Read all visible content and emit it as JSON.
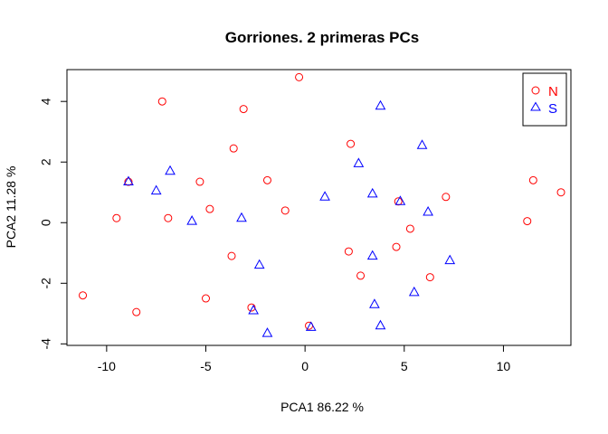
{
  "chart_data": {
    "type": "scatter",
    "title": "Gorriones. 2 primeras PCs",
    "xlabel": "PCA1  86.22 %",
    "ylabel": "PCA2  11.28 %",
    "xlim": [
      -12,
      13.4
    ],
    "ylim": [
      -4.05,
      5.05
    ],
    "xticks": [
      -10,
      -5,
      0,
      5,
      10
    ],
    "yticks": [
      -4,
      -2,
      0,
      2,
      4
    ],
    "grid": false,
    "legend": "top-right",
    "series": [
      {
        "name": "N",
        "marker": "circle",
        "color": "#ff0000",
        "points": [
          [
            -0.3,
            4.8
          ],
          [
            -7.2,
            4.0
          ],
          [
            -3.1,
            3.75
          ],
          [
            -3.6,
            2.45
          ],
          [
            2.3,
            2.6
          ],
          [
            -8.9,
            1.35
          ],
          [
            -5.3,
            1.35
          ],
          [
            -1.9,
            1.4
          ],
          [
            -9.5,
            0.15
          ],
          [
            -6.9,
            0.15
          ],
          [
            -4.8,
            0.45
          ],
          [
            -1.0,
            0.4
          ],
          [
            4.7,
            0.7
          ],
          [
            7.1,
            0.85
          ],
          [
            11.5,
            1.4
          ],
          [
            12.9,
            1.0
          ],
          [
            11.2,
            0.05
          ],
          [
            5.3,
            -0.2
          ],
          [
            4.6,
            -0.8
          ],
          [
            2.2,
            -0.95
          ],
          [
            -3.7,
            -1.1
          ],
          [
            2.8,
            -1.75
          ],
          [
            6.3,
            -1.8
          ],
          [
            -11.2,
            -2.4
          ],
          [
            -5.0,
            -2.5
          ],
          [
            -2.7,
            -2.8
          ],
          [
            -8.5,
            -2.95
          ],
          [
            0.2,
            -3.4
          ]
        ]
      },
      {
        "name": "S",
        "marker": "triangle",
        "color": "#0000ff",
        "points": [
          [
            3.8,
            3.85
          ],
          [
            5.9,
            2.55
          ],
          [
            2.7,
            1.95
          ],
          [
            -6.8,
            1.7
          ],
          [
            -8.9,
            1.35
          ],
          [
            -7.5,
            1.05
          ],
          [
            1.0,
            0.85
          ],
          [
            3.4,
            0.95
          ],
          [
            4.8,
            0.7
          ],
          [
            6.2,
            0.35
          ],
          [
            -5.7,
            0.05
          ],
          [
            -3.2,
            0.15
          ],
          [
            -2.3,
            -1.4
          ],
          [
            3.4,
            -1.1
          ],
          [
            7.3,
            -1.25
          ],
          [
            5.5,
            -2.3
          ],
          [
            3.5,
            -2.7
          ],
          [
            -2.6,
            -2.9
          ],
          [
            3.8,
            -3.4
          ],
          [
            0.3,
            -3.45
          ],
          [
            -1.9,
            -3.65
          ]
        ]
      }
    ]
  }
}
